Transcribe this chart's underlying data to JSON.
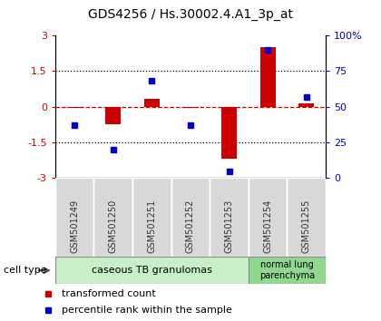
{
  "title": "GDS4256 / Hs.30002.4.A1_3p_at",
  "samples": [
    "GSM501249",
    "GSM501250",
    "GSM501251",
    "GSM501252",
    "GSM501253",
    "GSM501254",
    "GSM501255"
  ],
  "transformed_count": [
    -0.05,
    -0.75,
    0.35,
    -0.05,
    -2.2,
    2.5,
    0.15
  ],
  "percentile_rank": [
    37,
    20,
    68,
    37,
    5,
    90,
    57
  ],
  "ylim_left": [
    -3,
    3
  ],
  "ylim_right": [
    0,
    100
  ],
  "yticks_left": [
    -3,
    -1.5,
    0,
    1.5,
    3
  ],
  "yticks_right": [
    0,
    25,
    50,
    75,
    100
  ],
  "ytick_labels_left": [
    "-3",
    "-1.5",
    "0",
    "1.5",
    "3"
  ],
  "ytick_labels_right": [
    "0",
    "25",
    "50",
    "75",
    "100%"
  ],
  "bar_color": "#cc0000",
  "dot_color": "#0000cc",
  "group1_n": 5,
  "group2_n": 2,
  "group1_label": "caseous TB granulomas",
  "group2_label": "normal lung\nparenchyma",
  "group1_color": "#c8f0c8",
  "group2_color": "#90d890",
  "sample_box_color": "#d8d8d8",
  "cell_type_label": "cell type",
  "legend_bar_label": "transformed count",
  "legend_dot_label": "percentile rank within the sample",
  "tick_label_color_left": "#cc0000",
  "tick_label_color_right": "#0000cc",
  "bar_width": 0.4
}
